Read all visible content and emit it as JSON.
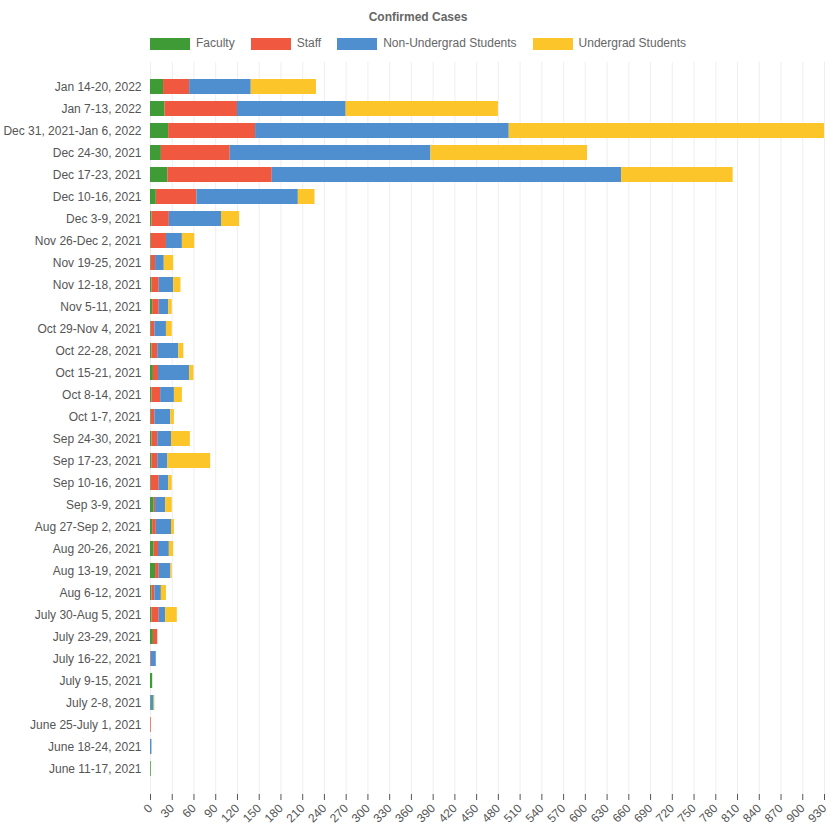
{
  "chart_data": {
    "type": "bar",
    "title": "Confirmed Cases",
    "orientation": "horizontal",
    "stacked": true,
    "grid": true,
    "legend": "top",
    "categories": [
      "Jan 14-20, 2022",
      "Jan 7-13, 2022",
      "Dec 31, 2021-Jan 6, 2022",
      "Dec 24-30, 2021",
      "Dec 17-23, 2021",
      "Dec 10-16, 2021",
      "Dec 3-9, 2021",
      "Nov 26-Dec 2, 2021",
      "Nov 19-25, 2021",
      "Nov 12-18, 2021",
      "Nov 5-11, 2021",
      "Oct 29-Nov 4, 2021",
      "Oct 22-28, 2021",
      "Oct 15-21, 2021",
      "Oct 8-14, 2021",
      "Oct 1-7, 2021",
      "Sep 24-30, 2021",
      "Sep 17-23, 2021",
      "Sep 10-16, 2021",
      "Sep 3-9, 2021",
      "Aug 27-Sep 2, 2021",
      "Aug 20-26, 2021",
      "Aug 13-19, 2021",
      "Aug 6-12, 2021",
      "July 30-Aug 5, 2021",
      "July 23-29, 2021",
      "July 16-22, 2021",
      "July 9-15, 2021",
      "July 2-8, 2021",
      "June 25-July 1, 2021",
      "June 18-24, 2021",
      "June 11-17, 2021"
    ],
    "series": [
      {
        "name": "Faculty",
        "color": "#3e9b35",
        "values": [
          18,
          20,
          25,
          15,
          24,
          8,
          2,
          1,
          1,
          2,
          3,
          1,
          2,
          4,
          2,
          1,
          2,
          2,
          1,
          5,
          3,
          5,
          7,
          2,
          2,
          4,
          0,
          3,
          1,
          0,
          0,
          1
        ]
      },
      {
        "name": "Staff",
        "color": "#f0583f",
        "values": [
          36,
          100,
          120,
          95,
          144,
          56,
          24,
          21,
          6,
          10,
          9,
          5,
          8,
          7,
          12,
          5,
          8,
          8,
          11,
          2,
          5,
          6,
          5,
          4,
          10,
          6,
          1,
          0,
          0,
          1,
          0,
          0
        ]
      },
      {
        "name": "Non-Undergrad Students",
        "color": "#4f8fd0",
        "values": [
          85,
          150,
          350,
          277,
          482,
          140,
          72,
          22,
          12,
          20,
          13,
          16,
          29,
          43,
          19,
          22,
          19,
          14,
          13,
          14,
          21,
          15,
          16,
          9,
          9,
          0,
          7,
          0,
          4,
          0,
          2,
          0
        ]
      },
      {
        "name": "Undergrad Students",
        "color": "#fcc62a",
        "values": [
          90,
          210,
          435,
          216,
          154,
          23,
          25,
          17,
          13,
          10,
          5,
          8,
          7,
          6,
          11,
          5,
          26,
          59,
          5,
          9,
          4,
          6,
          2,
          7,
          16,
          0,
          0,
          0,
          1,
          0,
          0,
          0
        ]
      }
    ],
    "xlim": [
      0,
      930
    ],
    "xticks": [
      0,
      30,
      60,
      90,
      120,
      150,
      180,
      210,
      240,
      270,
      300,
      330,
      360,
      390,
      420,
      450,
      480,
      510,
      540,
      570,
      600,
      630,
      660,
      690,
      720,
      750,
      780,
      810,
      840,
      870,
      900,
      930
    ]
  }
}
